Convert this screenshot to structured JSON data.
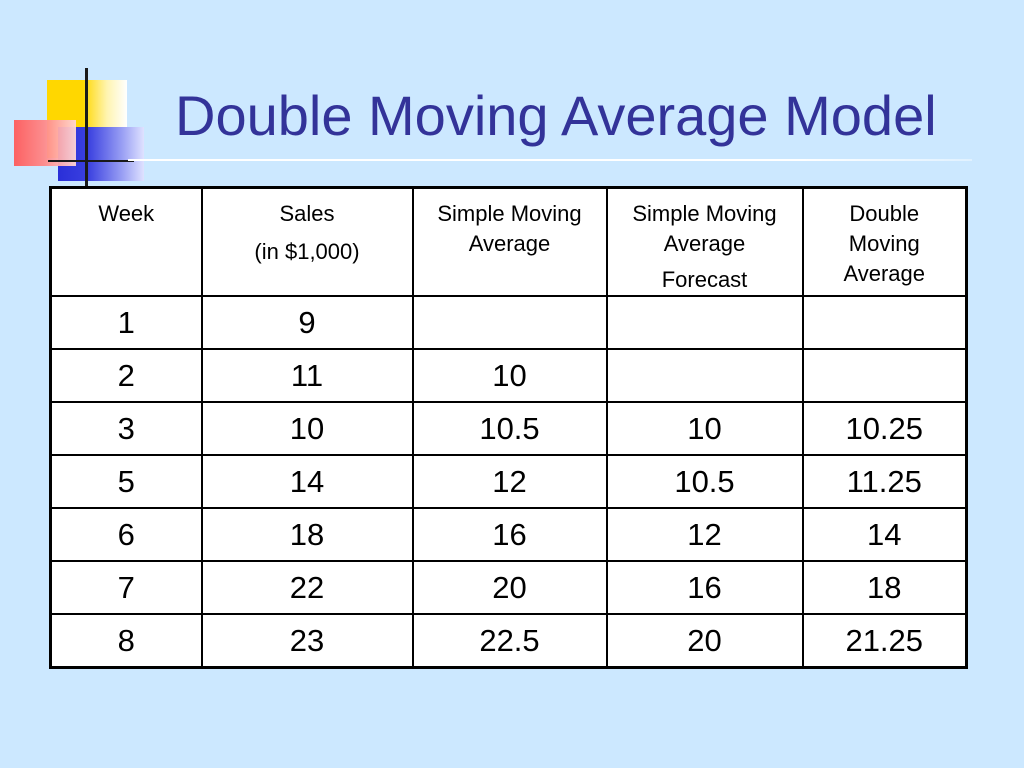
{
  "title": "Double Moving Average Model",
  "table": {
    "headers": [
      [
        "Week"
      ],
      [
        "Sales",
        "(in $1,000)"
      ],
      [
        "Simple Moving",
        "Average"
      ],
      [
        "Simple Moving",
        "Average",
        "Forecast"
      ],
      [
        "Double",
        "Moving",
        "Average"
      ]
    ],
    "rows": [
      [
        "1",
        "9",
        "",
        "",
        ""
      ],
      [
        "2",
        "11",
        "10",
        "",
        ""
      ],
      [
        "3",
        "10",
        "10.5",
        "10",
        "10.25"
      ],
      [
        "5",
        "14",
        "12",
        "10.5",
        "11.25"
      ],
      [
        "6",
        "18",
        "16",
        "12",
        "14"
      ],
      [
        "7",
        "22",
        "20",
        "16",
        "18"
      ],
      [
        "8",
        "23",
        "22.5",
        "20",
        "21.25"
      ]
    ]
  },
  "colors": {
    "background": "#cce8ff",
    "title": "#333399"
  }
}
